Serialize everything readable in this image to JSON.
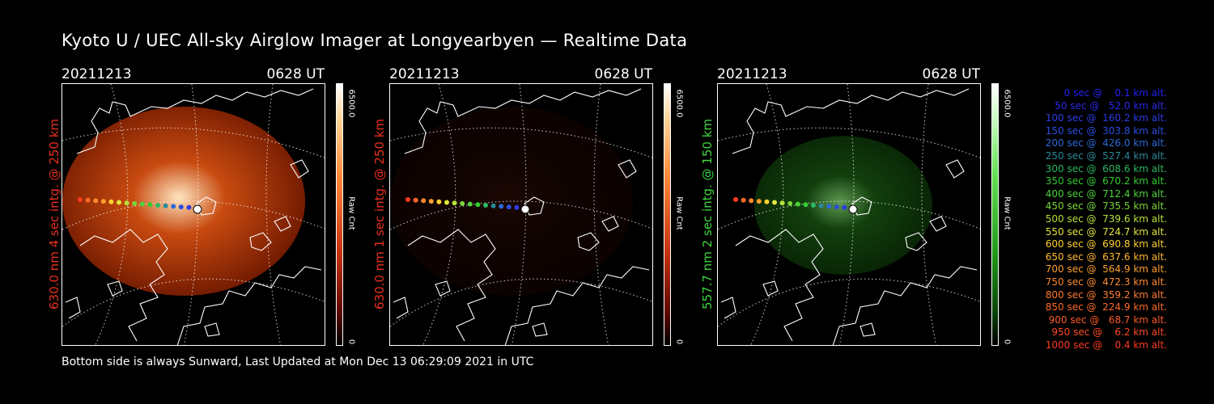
{
  "title": "Kyoto U / UEC All-sky Airglow Imager at Longyearbyen — Realtime Data",
  "footer": "Bottom side is always Sunward, Last Updated at Mon Dec 13 06:29:09 2021 in UTC",
  "panels": [
    {
      "date": "20211213",
      "time": "0628 UT",
      "side_label": "630.0 nm 4 sec intg. @ 250 km",
      "label_color": "#e8301e",
      "image_level": 1.0,
      "colorbar": {
        "max": "6500.0",
        "unit": "Raw Cnt",
        "min": "0"
      }
    },
    {
      "date": "20211213",
      "time": "0628 UT",
      "side_label": "630.0 nm 1 sec intg. @ 250 km",
      "label_color": "#e8301e",
      "image_level": 0.3,
      "colorbar": {
        "max": "6500.0",
        "unit": "Raw Cnt",
        "min": "0"
      }
    },
    {
      "date": "20211213",
      "time": "0628 UT",
      "side_label": "557.7 nm 2 sec intg. @ 150 km",
      "label_color": "#3ed43e",
      "image_level": 0.6,
      "colorbar": {
        "max": "6500.0",
        "unit": "Raw Cnt",
        "min": "0"
      }
    }
  ],
  "legend": [
    {
      "text": "   0 sec @    0.1 km alt.",
      "color": "#2222ee"
    },
    {
      "text": "  50 sec @   52.0 km alt.",
      "color": "#2a2ae8"
    },
    {
      "text": " 100 sec @  160.2 km alt.",
      "color": "#2c3ce8"
    },
    {
      "text": " 150 sec @  303.8 km alt.",
      "color": "#2b4ee0"
    },
    {
      "text": " 200 sec @  426.0 km alt.",
      "color": "#2d6ad8"
    },
    {
      "text": " 250 sec @  527.4 km alt.",
      "color": "#2a8a9a"
    },
    {
      "text": " 300 sec @  608.6 km alt.",
      "color": "#2cb860"
    },
    {
      "text": " 350 sec @  670.2 km alt.",
      "color": "#33cc33"
    },
    {
      "text": " 400 sec @  712.4 km alt.",
      "color": "#4cd43a"
    },
    {
      "text": " 450 sec @  735.5 km alt.",
      "color": "#7ad63a"
    },
    {
      "text": " 500 sec @  739.6 km alt.",
      "color": "#b8e03c"
    },
    {
      "text": " 550 sec @  724.7 km alt.",
      "color": "#e0e43c"
    },
    {
      "text": " 600 sec @  690.8 km alt.",
      "color": "#ffd030"
    },
    {
      "text": " 650 sec @  637.6 km alt.",
      "color": "#ffb830"
    },
    {
      "text": " 700 sec @  564.9 km alt.",
      "color": "#ffa030"
    },
    {
      "text": " 750 sec @  472.3 km alt.",
      "color": "#ff8a30"
    },
    {
      "text": " 800 sec @  359.2 km alt.",
      "color": "#ff7a30"
    },
    {
      "text": " 850 sec @  224.9 km alt.",
      "color": "#ff6a2a"
    },
    {
      "text": " 900 sec @   68.7 km alt.",
      "color": "#ff5a28"
    },
    {
      "text": " 950 sec @    6.2 km alt.",
      "color": "#ff4a24"
    },
    {
      "text": "1000 sec @    0.4 km alt.",
      "color": "#ff3a20"
    }
  ]
}
